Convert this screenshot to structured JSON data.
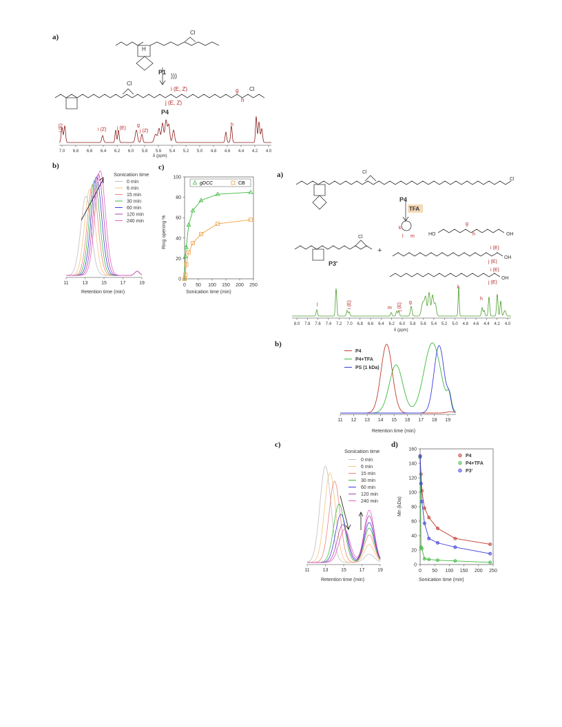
{
  "left": {
    "panel_a": {
      "label": "a)",
      "p1": "P1",
      "p4": "P4",
      "arrow_symbol": ")))",
      "cl": "Cl",
      "h": "H",
      "chain_labels": [
        "i (E, Z)",
        "j (E, Z)",
        "g",
        "h"
      ],
      "peak_labels": [
        "i (E)",
        "i (Z)",
        "j (E)",
        "g",
        "j (Z)",
        "h"
      ],
      "x_ticks": [
        "7.0",
        "6.8",
        "6.6",
        "6.4",
        "6.2",
        "6.0",
        "5.8",
        "5.6",
        "5.4",
        "5.2",
        "5.0",
        "4.8",
        "4.6",
        "4.4",
        "4.2",
        "4.0"
      ],
      "x_unit": "δ (ppm)"
    },
    "panel_b": {
      "label": "b)",
      "legend_title": "Sonication time",
      "legend": [
        "0 min",
        "6 min",
        "15 min",
        "30 min",
        "60 min",
        "120 min",
        "240 min"
      ],
      "xlabel": "Retention time (min)",
      "x_ticks": [
        "11",
        "13",
        "15",
        "17",
        "19"
      ]
    },
    "panel_c": {
      "label": "c)",
      "ylabel": "Ring opening %",
      "xlabel": "Sonication time (min)",
      "x_ticks": [
        "0",
        "50",
        "100",
        "150",
        "200",
        "250"
      ],
      "y_ticks": [
        "0",
        "20",
        "40",
        "60",
        "80",
        "100"
      ],
      "legend": [
        "gDCC",
        "CB"
      ]
    }
  },
  "right": {
    "panel_a": {
      "label": "a)",
      "p4": "P4",
      "reagent": "TFA",
      "p3": "P3'",
      "plus": "+",
      "cl": "Cl",
      "oh": "OH",
      "ho": "HO",
      "mol_labels": [
        "k",
        "l",
        "m",
        "g",
        "h",
        "i (E)",
        "j (E)",
        "i (E)",
        "j (E)"
      ],
      "peak_labels": [
        "l",
        "i (E)",
        "m",
        "j (E)",
        "g",
        "k",
        "h"
      ],
      "x_ticks": [
        "8.0",
        "7.8",
        "7.6",
        "7.4",
        "7.2",
        "7.0",
        "6.8",
        "6.6",
        "6.4",
        "6.2",
        "6.0",
        "5.8",
        "5.6",
        "5.4",
        "5.2",
        "5.0",
        "4.8",
        "4.6",
        "4.4",
        "4.2",
        "4.0"
      ],
      "x_unit": "δ (ppm)"
    },
    "panel_b": {
      "label": "b)",
      "legend": [
        "P4",
        "P4+TFA",
        "PS (1 kDa)"
      ],
      "xlabel": "Retention time (min)",
      "x_ticks": [
        "11",
        "12",
        "13",
        "14",
        "15",
        "16",
        "17",
        "18",
        "19"
      ]
    },
    "panel_c": {
      "label": "c)",
      "legend_title": "Sonication time",
      "legend": [
        "0 min",
        "6 min",
        "15 min",
        "30 min",
        "60 min",
        "120 min",
        "240 min"
      ],
      "xlabel": "Retention time (min)",
      "x_ticks": [
        "11",
        "13",
        "15",
        "17",
        "19"
      ]
    },
    "panel_d": {
      "label": "d)",
      "ylabel": "Mn (kDa)",
      "xlabel": "Sonication time (min)",
      "x_ticks": [
        "0",
        "50",
        "100",
        "150",
        "200",
        "250"
      ],
      "y_ticks": [
        "0",
        "20",
        "40",
        "60",
        "80",
        "100",
        "120",
        "140",
        "160"
      ],
      "legend": [
        "P4",
        "P4+TFA",
        "P3'"
      ]
    }
  },
  "colors": {
    "nmr_left": "#8b1a1a",
    "nmr_right": "#4a9e2a",
    "red_label": "#b22222",
    "gdcc": "#3cb83c",
    "cb": "#f0a040",
    "p4": "#c0392b",
    "p4tfa": "#3cb83c",
    "ps": "#3a3adb",
    "p3": "#3a3adb",
    "traces": [
      "#bdbdbd",
      "#f4c47a",
      "#f08080",
      "#3cb83c",
      "#3a3adb",
      "#b040b0",
      "#e060c0"
    ]
  },
  "chart_data": [
    {
      "type": "line",
      "title": "",
      "xlabel": "Sonication time (min)",
      "ylabel": "Ring opening %",
      "xlim": [
        0,
        250
      ],
      "ylim": [
        0,
        100
      ],
      "series": [
        {
          "name": "gDCC",
          "x": [
            0,
            3,
            6,
            15,
            30,
            60,
            120,
            240
          ],
          "values": [
            0,
            22,
            31,
            53,
            67,
            77,
            83,
            85
          ]
        },
        {
          "name": "CB",
          "x": [
            0,
            3,
            6,
            15,
            30,
            60,
            120,
            240
          ],
          "values": [
            0,
            4,
            14,
            26,
            35,
            44,
            54,
            58
          ]
        }
      ]
    },
    {
      "type": "line",
      "title": "",
      "xlabel": "Sonication time (min)",
      "ylabel": "Mn (kDa)",
      "xlim": [
        0,
        250
      ],
      "ylim": [
        0,
        160
      ],
      "series": [
        {
          "name": "P4",
          "x": [
            0,
            3,
            6,
            15,
            30,
            60,
            120,
            240
          ],
          "values": [
            150,
            125,
            102,
            78,
            65,
            50,
            36,
            28
          ]
        },
        {
          "name": "P4+TFA",
          "x": [
            0,
            3,
            6,
            15,
            30,
            60,
            120,
            240
          ],
          "values": [
            148,
            24,
            22,
            8,
            7,
            6,
            5,
            3
          ]
        },
        {
          "name": "P3'",
          "x": [
            0,
            3,
            6,
            15,
            30,
            60,
            120,
            240
          ],
          "values": [
            150,
            112,
            87,
            57,
            36,
            30,
            24,
            15
          ]
        }
      ]
    }
  ]
}
